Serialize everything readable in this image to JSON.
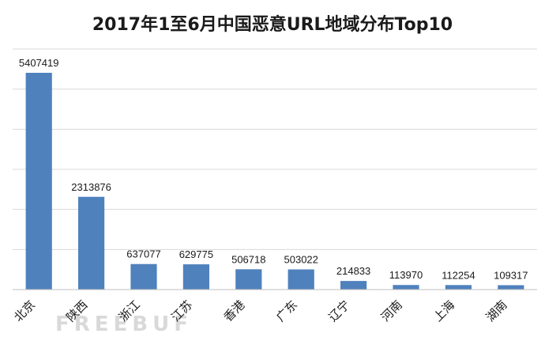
{
  "chart_data": {
    "type": "bar",
    "title": "2017年1至6月中国恶意URL地域分布Top10",
    "xlabel": "",
    "ylabel": "",
    "categories": [
      "北京",
      "陕西",
      "浙江",
      "江苏",
      "香港",
      "广东",
      "辽宁",
      "河南",
      "上海",
      "湖南"
    ],
    "values": [
      5407419,
      2313876,
      637077,
      629775,
      506718,
      503022,
      214833,
      113970,
      112254,
      109317
    ],
    "ylim": [
      0,
      6000000
    ],
    "grid": true,
    "legend": "none",
    "bar_color": "#4f81bd",
    "grid_color": "#d9d9d9"
  },
  "watermark": "FREEBUF"
}
